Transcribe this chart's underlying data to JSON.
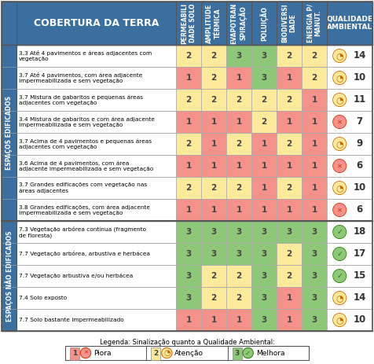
{
  "title": "COBERTURA DA TERRA",
  "col_headers": [
    "PERMEABILI\nDADE SOLO",
    "AMPLITUDE\nTÉRMICA",
    "EVAPOTRAN\nSPIRAÇÃO",
    "POLUIÇÃO",
    "BIODIVERSI\nDADE",
    "ENERGIA P/\nMANUT.",
    "QUALIDADE\nAMBIENTAL"
  ],
  "row_group1_label": "ESPAÇOS EDIFICADOS",
  "row_group2_label": "ESPAÇOS NÃO EDIFICADOS",
  "rows": [
    {
      "label": "3.3 Até 4 pavimentos e áreas adjacentes com\nvegetação",
      "values": [
        2,
        2,
        3,
        3,
        2,
        2
      ],
      "score": 14
    },
    {
      "label": "3.7 Até 4 pavimentos, com área adjacente\nimpermeabilizada e sem vegetação",
      "values": [
        1,
        2,
        1,
        3,
        1,
        2
      ],
      "score": 10
    },
    {
      "label": "3.7 Mistura de gabaritos e pequenas áreas\nadjacentes com vegetação",
      "values": [
        2,
        2,
        2,
        2,
        2,
        1
      ],
      "score": 11
    },
    {
      "label": "3.4 Mistura de gabaritos e com área adjacente\nimpermeabilizada e sem vegetação",
      "values": [
        1,
        1,
        1,
        2,
        1,
        1
      ],
      "score": 7
    },
    {
      "label": "3.7 Acima de 4 pavimentos e pequenas áreas\nadjacentes com vegetação",
      "values": [
        2,
        1,
        2,
        1,
        2,
        1
      ],
      "score": 9
    },
    {
      "label": "3.6 Acima de 4 pavimentos, com área\nadjacente impermeabilizada e sem vegetação",
      "values": [
        1,
        1,
        1,
        1,
        1,
        1
      ],
      "score": 6
    },
    {
      "label": "3.7 Grandes edificações com vegetação nas\náreas adjacentes",
      "values": [
        2,
        2,
        2,
        1,
        2,
        1
      ],
      "score": 10
    },
    {
      "label": "3.8 Grandes edificações, com área adjacente\nimpermeabilizada e sem vegetação",
      "values": [
        1,
        1,
        1,
        1,
        1,
        1
      ],
      "score": 6
    },
    {
      "label": "7.3 Vegetação arbórea contínua (fragmento\nde floresta)",
      "values": [
        3,
        3,
        3,
        3,
        3,
        3
      ],
      "score": 18
    },
    {
      "label": "7.7 Vegetação arbórea, arbustiva e herbácea",
      "values": [
        3,
        3,
        3,
        3,
        2,
        3
      ],
      "score": 17
    },
    {
      "label": "7.7 Vegetação arbustiva e/ou herbácea",
      "values": [
        3,
        2,
        2,
        3,
        2,
        3
      ],
      "score": 15
    },
    {
      "label": "7.4 Solo exposto",
      "values": [
        3,
        2,
        2,
        3,
        1,
        3
      ],
      "score": 14
    },
    {
      "label": "7.7 Solo bastante impermeabilizado",
      "values": [
        1,
        1,
        1,
        3,
        1,
        3
      ],
      "score": 10
    }
  ],
  "color1": "#f4928a",
  "color2": "#fde99a",
  "color3": "#8dc878",
  "header_bg": "#3b6fa0",
  "group_bg": "#3b6fa0",
  "border_dark": "#555555",
  "border_light": "#aaaaaa",
  "group1_count": 8,
  "group2_count": 5,
  "legend_text": "Legenda: Sinalização quanto a Qualidade Ambiental:"
}
